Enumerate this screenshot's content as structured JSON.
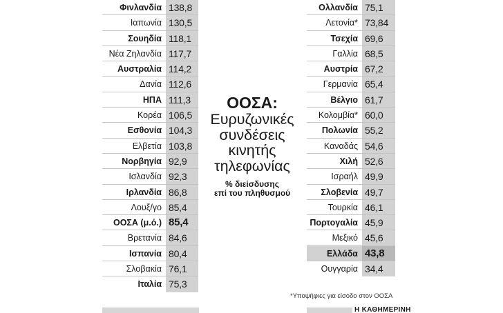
{
  "chart_data": {
    "type": "table",
    "title": "ΟΟΣΑ:",
    "subtitle_lines": [
      "Ευρυζωνικές",
      "συνδέσεις",
      "κινητής",
      "τηλεφωνίας"
    ],
    "unit_lines": [
      "% διείσδυσης",
      "επί του πληθυσμού"
    ],
    "left_rows": [
      {
        "country": "Φινλανδία",
        "value": "138,8",
        "bold": true
      },
      {
        "country": "Ιαπωνία",
        "value": "130,5",
        "bold": false
      },
      {
        "country": "Σουηδία",
        "value": "118,1",
        "bold": true
      },
      {
        "country": "Νέα Ζηλανδία",
        "value": "117,7",
        "bold": false
      },
      {
        "country": "Αυστραλία",
        "value": "114,2",
        "bold": true
      },
      {
        "country": "Δανία",
        "value": "112,6",
        "bold": false
      },
      {
        "country": "ΗΠΑ",
        "value": "111,3",
        "bold": true
      },
      {
        "country": "Κορέα",
        "value": "106,5",
        "bold": false
      },
      {
        "country": "Εσθονία",
        "value": "104,3",
        "bold": true
      },
      {
        "country": "Ελβετία",
        "value": "103,8",
        "bold": false
      },
      {
        "country": "Νορβηγία",
        "value": "92,9",
        "bold": true
      },
      {
        "country": "Ισλανδία",
        "value": "92,3",
        "bold": false
      },
      {
        "country": "Ιρλανδία",
        "value": "86,8",
        "bold": true
      },
      {
        "country": "Λουξ/γο",
        "value": "85,4",
        "bold": false
      },
      {
        "country": "ΟΟΣΑ (μ.ό.)",
        "value": "85,4",
        "bold": true,
        "emphasis": true
      },
      {
        "country": "Βρετανία",
        "value": "84,6",
        "bold": false
      },
      {
        "country": "Ισπανία",
        "value": "80,4",
        "bold": true
      },
      {
        "country": "Σλοβακία",
        "value": "76,1",
        "bold": false
      },
      {
        "country": "Ιταλία",
        "value": "75,3",
        "bold": true
      }
    ],
    "right_rows": [
      {
        "country": "Ολλανδία",
        "value": "75,1",
        "bold": true
      },
      {
        "country": "Λετονία*",
        "value": "73,84",
        "bold": false
      },
      {
        "country": "Τσεχία",
        "value": "69,6",
        "bold": true
      },
      {
        "country": "Γαλλία",
        "value": "68,5",
        "bold": false
      },
      {
        "country": "Αυστρία",
        "value": "67,2",
        "bold": true
      },
      {
        "country": "Γερμανία",
        "value": "65,4",
        "bold": false
      },
      {
        "country": "Βέλγιο",
        "value": "61,7",
        "bold": true
      },
      {
        "country": "Κολομβία*",
        "value": "60,0",
        "bold": false
      },
      {
        "country": "Πολωνία",
        "value": "55,2",
        "bold": true
      },
      {
        "country": "Καναδάς",
        "value": "54,6",
        "bold": false
      },
      {
        "country": "Χιλή",
        "value": "52,6",
        "bold": true
      },
      {
        "country": "Ισραήλ",
        "value": "49,9",
        "bold": false
      },
      {
        "country": "Σλοβενία",
        "value": "49,7",
        "bold": true
      },
      {
        "country": "Τουρκία",
        "value": "46,1",
        "bold": false
      },
      {
        "country": "Πορτογαλία",
        "value": "45,9",
        "bold": true
      },
      {
        "country": "Μεξικό",
        "value": "45,6",
        "bold": false
      },
      {
        "country": "Ελλάδα",
        "value": "43,8",
        "bold": true,
        "highlight": true
      },
      {
        "country": "Ουγγαρία",
        "value": "34,4",
        "bold": false
      }
    ],
    "footnote": "*Υποψήφιες για είσοδο στον ΟΟΣΑ",
    "credit": "Η ΚΑΘΗΜΕΡΙΝΗ"
  }
}
